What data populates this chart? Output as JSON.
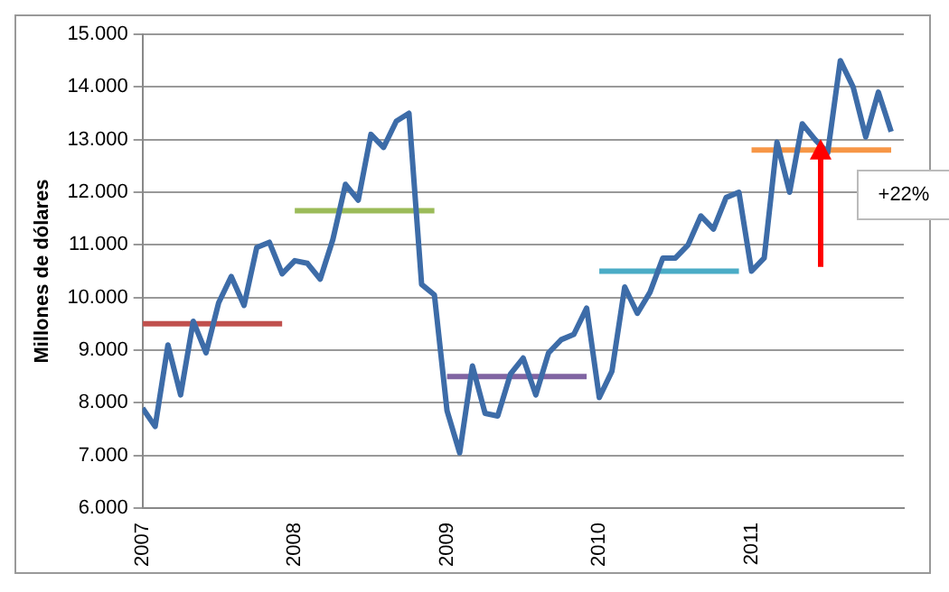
{
  "chart_data": {
    "type": "line",
    "ylabel": "Millones de dólares",
    "annotations": [
      "+22%"
    ],
    "xlim": [
      2007,
      2012
    ],
    "xticks": [
      2007,
      2008,
      2009,
      2010,
      2011
    ],
    "ylim": [
      6000,
      15000
    ],
    "yticks": [
      {
        "value": 6000,
        "label": "6.000"
      },
      {
        "value": 7000,
        "label": "7.000"
      },
      {
        "value": 8000,
        "label": "8.000"
      },
      {
        "value": 9000,
        "label": "9.000"
      },
      {
        "value": 10000,
        "label": "10.000"
      },
      {
        "value": 11000,
        "label": "11.000"
      },
      {
        "value": 12000,
        "label": "12.000"
      },
      {
        "value": 13000,
        "label": "13.000"
      },
      {
        "value": 14000,
        "label": "14.000"
      },
      {
        "value": 15000,
        "label": "15.000"
      }
    ],
    "grid": "y",
    "legend": false,
    "marker": "none",
    "line_style": "solid",
    "series": [
      {
        "color": "#3d6ca8",
        "x": [
          2007,
          2007.083,
          2007.167,
          2007.25,
          2007.333,
          2007.417,
          2007.5,
          2007.583,
          2007.667,
          2007.75,
          2007.833,
          2007.917,
          2008,
          2008.083,
          2008.167,
          2008.25,
          2008.333,
          2008.417,
          2008.5,
          2008.583,
          2008.667,
          2008.75,
          2008.833,
          2008.917,
          2009,
          2009.083,
          2009.167,
          2009.25,
          2009.333,
          2009.417,
          2009.5,
          2009.583,
          2009.667,
          2009.75,
          2009.833,
          2009.917,
          2010,
          2010.083,
          2010.167,
          2010.25,
          2010.333,
          2010.417,
          2010.5,
          2010.583,
          2010.667,
          2010.75,
          2010.833,
          2010.917,
          2011,
          2011.083,
          2011.167,
          2011.25,
          2011.333,
          2011.417,
          2011.5,
          2011.583,
          2011.667,
          2011.75,
          2011.833,
          2011.917
        ],
        "values": [
          7900,
          7550,
          9100,
          8150,
          9550,
          8950,
          9900,
          10400,
          9850,
          10950,
          11050,
          10450,
          10700,
          10650,
          10350,
          11100,
          12150,
          11850,
          13100,
          12850,
          13350,
          13500,
          10250,
          10050,
          7850,
          7050,
          8700,
          7800,
          7750,
          8550,
          8850,
          8150,
          8950,
          9200,
          9300,
          9800,
          8100,
          8600,
          10200,
          9700,
          10100,
          10750,
          10750,
          11000,
          11550,
          11300,
          11900,
          12000,
          10500,
          10750,
          12950,
          12000,
          13300,
          13000,
          12750,
          14500,
          14000,
          13050,
          13900,
          13150
        ]
      },
      {
        "type": "line",
        "color": "#c0504d",
        "x": [
          2007,
          2007.917
        ],
        "values": [
          9500,
          9500
        ]
      },
      {
        "type": "line",
        "color": "#9bbb59",
        "x": [
          2008,
          2008.917
        ],
        "values": [
          11650,
          11650
        ]
      },
      {
        "type": "line",
        "color": "#8064a2",
        "x": [
          2009,
          2009.917
        ],
        "values": [
          8500,
          8500
        ]
      },
      {
        "type": "line",
        "color": "#4bacc6",
        "x": [
          2010,
          2010.917
        ],
        "values": [
          10500,
          10500
        ]
      },
      {
        "type": "line",
        "color": "#f79646",
        "x": [
          2011,
          2011.917
        ],
        "values": [
          12800,
          12800
        ]
      }
    ]
  }
}
